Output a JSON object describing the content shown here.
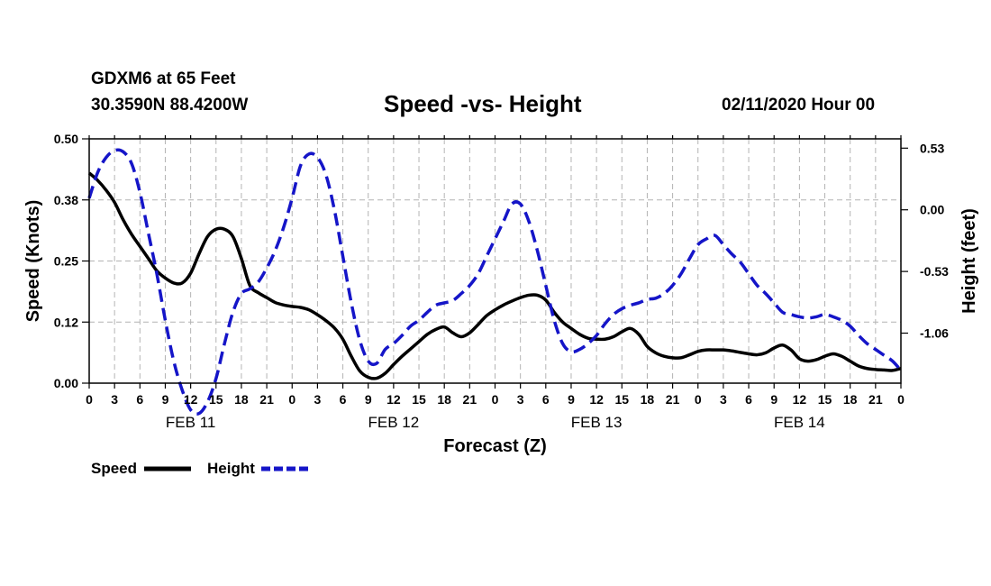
{
  "header": {
    "station": "GDXM6 at 65 Feet",
    "coords": "30.3590N 88.4200W",
    "title": "Speed -vs- Height",
    "issued": "02/11/2020 Hour 00"
  },
  "legend": {
    "speed_label": "Speed",
    "height_label": "Height"
  },
  "colors": {
    "speed": "#000000",
    "height": "#1515c8",
    "grid": "#b4b4b4"
  },
  "chart_data": {
    "type": "line",
    "title": "Speed -vs- Height",
    "xlabel": "Forecast (Z)",
    "ylabel": "Speed (Knots)",
    "y2label": "Height (feet)",
    "xlim": [
      0,
      96
    ],
    "ylim": [
      0,
      0.5
    ],
    "y2lim": [
      -1.49,
      0.61
    ],
    "x_tick_labels": [
      "0",
      "3",
      "6",
      "9",
      "12",
      "15",
      "18",
      "21",
      "0",
      "3",
      "6",
      "9",
      "12",
      "15",
      "18",
      "21",
      "0",
      "3",
      "6",
      "9",
      "12",
      "15",
      "18",
      "21",
      "0",
      "3",
      "6",
      "9",
      "12",
      "15",
      "18",
      "21",
      "0"
    ],
    "y_ticks": [
      "0.00",
      "0.12",
      "0.25",
      "0.38",
      "0.50"
    ],
    "y2_ticks": [
      "0.53",
      "0.00",
      "-0.53",
      "-1.06"
    ],
    "day_labels": [
      {
        "label": "FEB 11",
        "hour": 12
      },
      {
        "label": "FEB 12",
        "hour": 36
      },
      {
        "label": "FEB 13",
        "hour": 60
      },
      {
        "label": "FEB 14",
        "hour": 84
      }
    ],
    "series": [
      {
        "name": "Speed",
        "axis": "left",
        "style": "solid",
        "x": [
          0,
          1,
          2,
          3,
          4,
          5,
          6,
          7,
          8,
          9,
          10,
          11,
          12,
          13,
          14,
          15,
          16,
          17,
          18,
          19,
          20,
          21,
          22,
          23,
          24,
          25,
          26,
          27,
          28,
          29,
          30,
          31,
          32,
          33,
          34,
          35,
          36,
          37,
          38,
          39,
          40,
          41,
          42,
          43,
          44,
          45,
          46,
          47,
          48,
          49,
          50,
          51,
          52,
          53,
          54,
          55,
          56,
          57,
          58,
          59,
          60,
          61,
          62,
          63,
          64,
          65,
          66,
          67,
          68,
          69,
          70,
          71,
          72,
          73,
          74,
          75,
          76,
          77,
          78,
          79,
          80,
          81,
          82,
          83,
          84,
          85,
          86,
          87,
          88,
          89,
          90,
          91,
          92,
          93,
          94,
          95,
          96
        ],
        "values": [
          0.43,
          0.415,
          0.395,
          0.37,
          0.335,
          0.305,
          0.28,
          0.255,
          0.23,
          0.215,
          0.205,
          0.205,
          0.225,
          0.265,
          0.3,
          0.315,
          0.315,
          0.3,
          0.255,
          0.2,
          0.185,
          0.175,
          0.165,
          0.16,
          0.157,
          0.155,
          0.15,
          0.14,
          0.128,
          0.113,
          0.09,
          0.055,
          0.025,
          0.012,
          0.01,
          0.02,
          0.038,
          0.055,
          0.07,
          0.085,
          0.1,
          0.11,
          0.115,
          0.103,
          0.095,
          0.103,
          0.12,
          0.138,
          0.15,
          0.16,
          0.168,
          0.175,
          0.18,
          0.18,
          0.17,
          0.145,
          0.125,
          0.112,
          0.1,
          0.092,
          0.09,
          0.09,
          0.095,
          0.105,
          0.112,
          0.1,
          0.075,
          0.062,
          0.055,
          0.052,
          0.052,
          0.058,
          0.065,
          0.068,
          0.068,
          0.068,
          0.066,
          0.063,
          0.06,
          0.058,
          0.062,
          0.072,
          0.078,
          0.068,
          0.05,
          0.045,
          0.048,
          0.055,
          0.06,
          0.055,
          0.045,
          0.035,
          0.03,
          0.028,
          0.027,
          0.026,
          0.03
        ]
      },
      {
        "name": "Height",
        "axis": "right",
        "style": "dashed",
        "x": [
          0,
          1,
          2,
          3,
          4,
          5,
          6,
          7,
          8,
          9,
          10,
          11,
          12,
          13,
          14,
          15,
          16,
          17,
          18,
          19,
          20,
          21,
          22,
          23,
          24,
          25,
          26,
          27,
          28,
          29,
          30,
          31,
          32,
          33,
          34,
          35,
          36,
          37,
          38,
          39,
          40,
          41,
          42,
          43,
          44,
          45,
          46,
          47,
          48,
          49,
          50,
          51,
          52,
          53,
          54,
          55,
          56,
          57,
          58,
          59,
          60,
          61,
          62,
          63,
          64,
          65,
          66,
          67,
          68,
          69,
          70,
          71,
          72,
          73,
          74,
          75,
          76,
          77,
          78,
          79,
          80,
          81,
          82,
          83,
          84,
          85,
          86,
          87,
          88,
          89,
          90,
          91,
          92,
          93,
          94,
          95,
          96
        ],
        "values": [
          0.1,
          0.32,
          0.45,
          0.51,
          0.5,
          0.4,
          0.15,
          -0.2,
          -0.55,
          -0.95,
          -1.3,
          -1.55,
          -1.72,
          -1.75,
          -1.65,
          -1.45,
          -1.15,
          -0.88,
          -0.72,
          -0.68,
          -0.62,
          -0.5,
          -0.35,
          -0.15,
          0.1,
          0.38,
          0.48,
          0.45,
          0.3,
          0.0,
          -0.4,
          -0.8,
          -1.12,
          -1.3,
          -1.32,
          -1.2,
          -1.15,
          -1.08,
          -1.0,
          -0.95,
          -0.88,
          -0.82,
          -0.8,
          -0.78,
          -0.72,
          -0.65,
          -0.55,
          -0.4,
          -0.25,
          -0.1,
          0.05,
          0.05,
          -0.1,
          -0.35,
          -0.65,
          -0.95,
          -1.15,
          -1.22,
          -1.2,
          -1.15,
          -1.08,
          -0.98,
          -0.9,
          -0.85,
          -0.82,
          -0.8,
          -0.77,
          -0.76,
          -0.72,
          -0.65,
          -0.55,
          -0.42,
          -0.3,
          -0.25,
          -0.22,
          -0.3,
          -0.38,
          -0.45,
          -0.55,
          -0.65,
          -0.72,
          -0.8,
          -0.88,
          -0.9,
          -0.92,
          -0.93,
          -0.92,
          -0.9,
          -0.92,
          -0.95,
          -1.0,
          -1.08,
          -1.15,
          -1.2,
          -1.25,
          -1.3,
          -1.38
        ]
      }
    ]
  }
}
